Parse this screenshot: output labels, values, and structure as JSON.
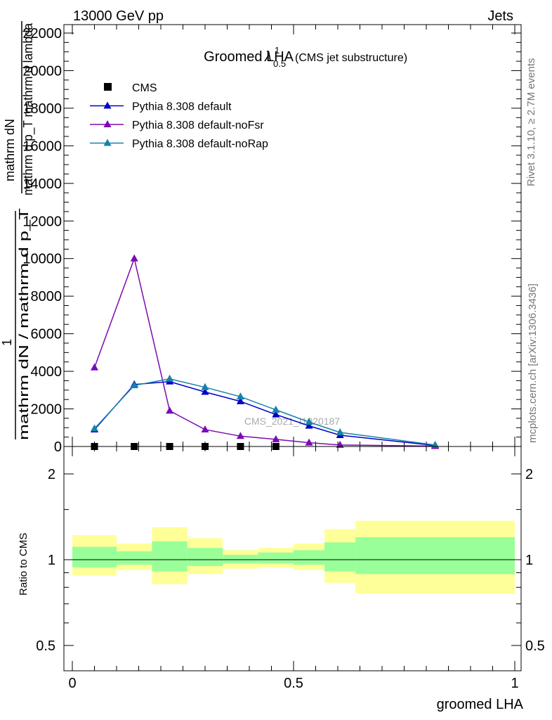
{
  "header": {
    "left": "13000 GeV pp",
    "right": "Jets"
  },
  "side_text": {
    "rivet": "Rivet 3.1.10, ≥ 2.7M events",
    "mcplots": "mcplots.cern.ch [arXiv:1306.3436]"
  },
  "watermark": "CMS_2021_I1920187",
  "colors": {
    "data": "#000000",
    "default": "#0000c8",
    "noFsr": "#7b0ab4",
    "noRap": "#1482aa",
    "band_outer": "#ffff99",
    "band_inner": "#99ff99"
  },
  "chart_data": [
    {
      "type": "line",
      "title": "Groomed LHA",
      "title_symbol": "λ",
      "title_sup": "1",
      "title_sub": "0.5",
      "title_suffix": "(CMS jet substructure)",
      "ylabel_top": "mathrm dN",
      "ylabel_mid": "mathrm d p_T mathrm d lambda",
      "ylabel_1": "1",
      "ylabel_bottom": "mathrm dN / mathrm d p_T",
      "ylim": [
        0,
        22500
      ],
      "y_ticks": [
        0,
        2000,
        4000,
        6000,
        8000,
        10000,
        12000,
        14000,
        16000,
        18000,
        20000,
        22000
      ],
      "y_tick_labels": [
        "0",
        "2000",
        "4000",
        "6000",
        "8000",
        "10000",
        "12000",
        "14000",
        "16000",
        "18000",
        "20000",
        "22000"
      ],
      "xlim": [
        -0.02,
        1.0
      ],
      "legend_position": "top-left",
      "series": [
        {
          "name": "CMS",
          "marker": "square",
          "color_key": "data",
          "x": [
            0.05,
            0.14,
            0.22,
            0.3,
            0.38,
            0.46
          ],
          "y": [
            0,
            0,
            0,
            0,
            0,
            0
          ]
        },
        {
          "name": "Pythia 8.308 default",
          "marker": "triangle",
          "color_key": "default",
          "x": [
            0.05,
            0.14,
            0.22,
            0.3,
            0.38,
            0.46,
            0.535,
            0.605,
            0.82
          ],
          "y": [
            900,
            3300,
            3450,
            2900,
            2400,
            1700,
            1100,
            600,
            50
          ]
        },
        {
          "name": "Pythia 8.308 default-noFsr",
          "marker": "triangle",
          "color_key": "noFsr",
          "x": [
            0.05,
            0.14,
            0.22,
            0.3,
            0.38,
            0.46,
            0.535,
            0.605,
            0.82
          ],
          "y": [
            4200,
            10000,
            1900,
            900,
            550,
            380,
            200,
            80,
            20
          ]
        },
        {
          "name": "Pythia 8.308 default-noRap",
          "marker": "triangle",
          "color_key": "noRap",
          "x": [
            0.05,
            0.14,
            0.22,
            0.3,
            0.38,
            0.46,
            0.535,
            0.605,
            0.82
          ],
          "y": [
            950,
            3250,
            3600,
            3150,
            2650,
            1950,
            1300,
            750,
            80
          ]
        }
      ]
    },
    {
      "type": "area",
      "ylabel": "Ratio to CMS",
      "xlabel": "groomed LHA",
      "ylim": [
        0.4,
        2.25
      ],
      "y_ticks": [
        0.5,
        1,
        2
      ],
      "y_tick_labels": [
        "0.5",
        "1",
        "2"
      ],
      "x_ticks": [
        0,
        0.5,
        1
      ],
      "x_tick_labels": [
        "0",
        "0.5",
        "1"
      ],
      "xlim": [
        -0.02,
        1.0
      ],
      "reference_line": 1,
      "bins": [
        {
          "x0": 0.0,
          "x1": 0.1,
          "outer": [
            0.88,
            1.22
          ],
          "inner": [
            0.94,
            1.11
          ]
        },
        {
          "x0": 0.1,
          "x1": 0.18,
          "outer": [
            0.92,
            1.14
          ],
          "inner": [
            0.96,
            1.07
          ]
        },
        {
          "x0": 0.18,
          "x1": 0.26,
          "outer": [
            0.82,
            1.3
          ],
          "inner": [
            0.91,
            1.16
          ]
        },
        {
          "x0": 0.26,
          "x1": 0.34,
          "outer": [
            0.89,
            1.19
          ],
          "inner": [
            0.95,
            1.1
          ]
        },
        {
          "x0": 0.34,
          "x1": 0.42,
          "outer": [
            0.93,
            1.08
          ],
          "inner": [
            0.97,
            1.04
          ]
        },
        {
          "x0": 0.42,
          "x1": 0.5,
          "outer": [
            0.94,
            1.1
          ],
          "inner": [
            0.97,
            1.06
          ]
        },
        {
          "x0": 0.5,
          "x1": 0.57,
          "outer": [
            0.92,
            1.14
          ],
          "inner": [
            0.96,
            1.08
          ]
        },
        {
          "x0": 0.57,
          "x1": 0.64,
          "outer": [
            0.83,
            1.28
          ],
          "inner": [
            0.91,
            1.15
          ]
        },
        {
          "x0": 0.64,
          "x1": 1.0,
          "outer": [
            0.76,
            1.37
          ],
          "inner": [
            0.89,
            1.2
          ]
        }
      ]
    }
  ]
}
